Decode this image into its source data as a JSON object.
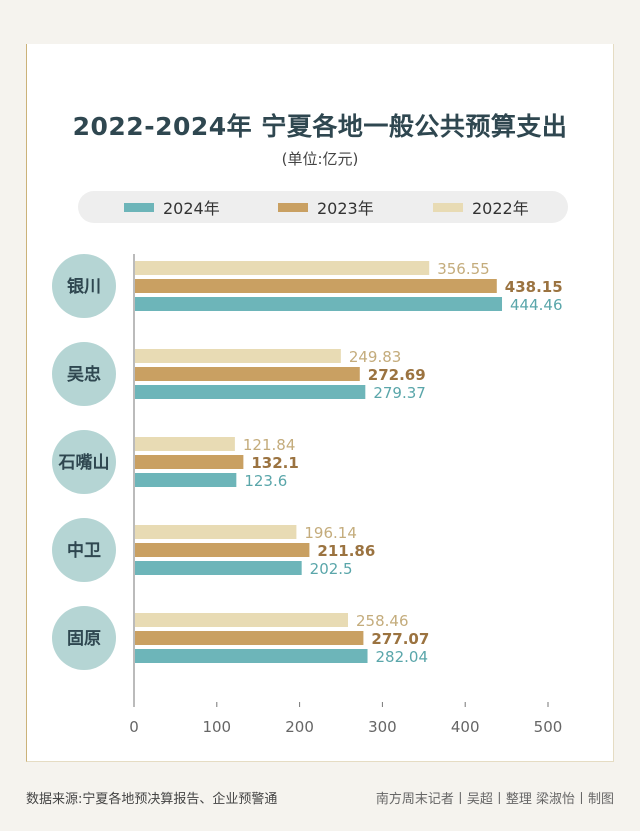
{
  "title": "2022-2024年 宁夏各地一般公共预算支出",
  "subtitle": "(单位:亿元)",
  "source": "数据来源:宁夏各地预决算报告、企业预警通",
  "credit": "南方周末记者丨吴超丨整理  梁淑怡丨制图",
  "colors": {
    "2024": "#6db5b9",
    "2023": "#c9a062",
    "2022": "#e8dbb4",
    "circle": "#b5d5d4",
    "bg": "#f5f3ee"
  },
  "chart_data": {
    "type": "bar",
    "orientation": "horizontal",
    "categories": [
      "银川",
      "吴忠",
      "石嘴山",
      "中卫",
      "固原"
    ],
    "series": [
      {
        "name": "2022年",
        "values": [
          356.55,
          249.83,
          121.84,
          196.14,
          258.46
        ]
      },
      {
        "name": "2023年",
        "values": [
          438.15,
          272.69,
          132.1,
          211.86,
          277.07
        ]
      },
      {
        "name": "2024年",
        "values": [
          444.46,
          279.37,
          123.6,
          202.5,
          282.04
        ]
      }
    ],
    "value_labels": [
      [
        "356.55",
        "249.83",
        "121.84",
        "196.14",
        "258.46"
      ],
      [
        "438.15",
        "272.69",
        "132.1",
        "211.86",
        "277.07"
      ],
      [
        "444.46",
        "279.37",
        "123.6",
        "202.5",
        "282.04"
      ]
    ],
    "legend_order": [
      "2024年",
      "2023年",
      "2022年"
    ],
    "xlim": [
      0,
      500
    ],
    "xticks": [
      "0",
      "100",
      "200",
      "300",
      "400",
      "500"
    ],
    "legend_position": "top"
  }
}
